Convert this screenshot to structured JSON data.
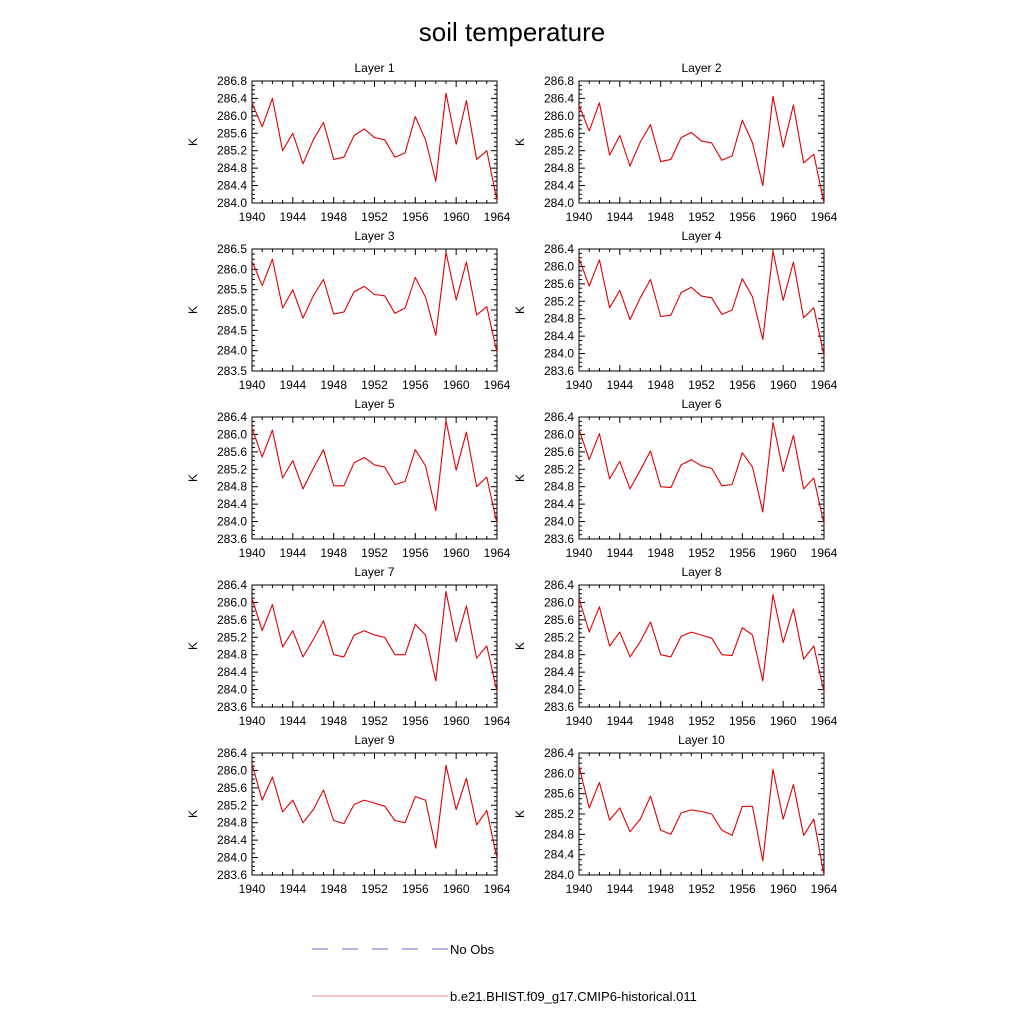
{
  "figure": {
    "title": "soil temperature",
    "legend": [
      {
        "label": "No Obs",
        "color": "#6b6bd6",
        "style": "dashed"
      },
      {
        "label": "b.e21.BHIST.f09_g17.CMIP6-historical.011",
        "color": "#f08a8a",
        "style": "solid"
      }
    ],
    "series_color": "#e00000"
  },
  "chart_data": [
    {
      "type": "line",
      "title": "Layer 1",
      "ylabel": "K",
      "xlim": [
        1940,
        1964
      ],
      "ylim": [
        284.0,
        286.8
      ],
      "xticks": [
        "1940",
        "1944",
        "1948",
        "1952",
        "1956",
        "1960",
        "1964"
      ],
      "yticks": [
        "284.0",
        "284.4",
        "284.8",
        "285.2",
        "285.6",
        "286.0",
        "286.4",
        "286.8"
      ],
      "x": [
        1940,
        1941,
        1942,
        1943,
        1944,
        1945,
        1946,
        1947,
        1948,
        1949,
        1950,
        1951,
        1952,
        1953,
        1954,
        1955,
        1956,
        1957,
        1958,
        1959,
        1960,
        1961,
        1962,
        1963,
        1964
      ],
      "y": [
        286.3,
        285.75,
        286.4,
        285.2,
        285.6,
        284.9,
        285.45,
        285.85,
        285.0,
        285.05,
        285.55,
        285.7,
        285.5,
        285.45,
        285.05,
        285.15,
        285.98,
        285.45,
        284.5,
        286.52,
        285.35,
        286.35,
        285.0,
        285.2,
        284.05
      ]
    },
    {
      "type": "line",
      "title": "Layer 2",
      "ylabel": "K",
      "xlim": [
        1940,
        1964
      ],
      "ylim": [
        284.0,
        286.8
      ],
      "xticks": [
        "1940",
        "1944",
        "1948",
        "1952",
        "1956",
        "1960",
        "1964"
      ],
      "yticks": [
        "284.0",
        "284.4",
        "284.8",
        "285.2",
        "285.6",
        "286.0",
        "286.4",
        "286.8"
      ],
      "x": [
        1940,
        1941,
        1942,
        1943,
        1944,
        1945,
        1946,
        1947,
        1948,
        1949,
        1950,
        1951,
        1952,
        1953,
        1954,
        1955,
        1956,
        1957,
        1958,
        1959,
        1960,
        1961,
        1962,
        1963,
        1964
      ],
      "y": [
        286.25,
        285.65,
        286.3,
        285.1,
        285.55,
        284.85,
        285.4,
        285.8,
        284.95,
        285.0,
        285.5,
        285.62,
        285.42,
        285.38,
        284.98,
        285.08,
        285.9,
        285.38,
        284.4,
        286.45,
        285.28,
        286.25,
        284.92,
        285.12,
        284.0
      ]
    },
    {
      "type": "line",
      "title": "Layer 3",
      "ylabel": "K",
      "xlim": [
        1940,
        1964
      ],
      "ylim": [
        283.5,
        286.5
      ],
      "xticks": [
        "1940",
        "1944",
        "1948",
        "1952",
        "1956",
        "1960",
        "1964"
      ],
      "yticks": [
        "283.5",
        "284.0",
        "284.5",
        "285.0",
        "285.5",
        "286.0",
        "286.5"
      ],
      "x": [
        1940,
        1941,
        1942,
        1943,
        1944,
        1945,
        1946,
        1947,
        1948,
        1949,
        1950,
        1951,
        1952,
        1953,
        1954,
        1955,
        1956,
        1957,
        1958,
        1959,
        1960,
        1961,
        1962,
        1963,
        1964
      ],
      "y": [
        286.2,
        285.6,
        286.25,
        285.05,
        285.5,
        284.8,
        285.35,
        285.75,
        284.9,
        284.95,
        285.45,
        285.58,
        285.38,
        285.35,
        284.92,
        285.05,
        285.8,
        285.32,
        284.38,
        286.42,
        285.25,
        286.18,
        284.88,
        285.08,
        283.95
      ]
    },
    {
      "type": "line",
      "title": "Layer 4",
      "ylabel": "K",
      "xlim": [
        1940,
        1964
      ],
      "ylim": [
        283.6,
        286.4
      ],
      "xticks": [
        "1940",
        "1944",
        "1948",
        "1952",
        "1956",
        "1960",
        "1964"
      ],
      "yticks": [
        "283.6",
        "284.0",
        "284.4",
        "284.8",
        "285.2",
        "285.6",
        "286.0",
        "286.4"
      ],
      "x": [
        1940,
        1941,
        1942,
        1943,
        1944,
        1945,
        1946,
        1947,
        1948,
        1949,
        1950,
        1951,
        1952,
        1953,
        1954,
        1955,
        1956,
        1957,
        1958,
        1959,
        1960,
        1961,
        1962,
        1963,
        1964
      ],
      "y": [
        286.18,
        285.55,
        286.15,
        285.05,
        285.45,
        284.78,
        285.28,
        285.7,
        284.85,
        284.88,
        285.4,
        285.52,
        285.32,
        285.28,
        284.9,
        285.0,
        285.72,
        285.3,
        284.32,
        286.35,
        285.22,
        286.1,
        284.82,
        285.05,
        283.95
      ]
    },
    {
      "type": "line",
      "title": "Layer 5",
      "ylabel": "K",
      "xlim": [
        1940,
        1964
      ],
      "ylim": [
        283.6,
        286.4
      ],
      "xticks": [
        "1940",
        "1944",
        "1948",
        "1952",
        "1956",
        "1960",
        "1964"
      ],
      "yticks": [
        "283.6",
        "284.0",
        "284.4",
        "284.8",
        "285.2",
        "285.6",
        "286.0",
        "286.4"
      ],
      "x": [
        1940,
        1941,
        1942,
        1943,
        1944,
        1945,
        1946,
        1947,
        1948,
        1949,
        1950,
        1951,
        1952,
        1953,
        1954,
        1955,
        1956,
        1957,
        1958,
        1959,
        1960,
        1961,
        1962,
        1963,
        1964
      ],
      "y": [
        286.15,
        285.48,
        286.1,
        285.0,
        285.4,
        284.75,
        285.22,
        285.65,
        284.82,
        284.82,
        285.35,
        285.47,
        285.3,
        285.25,
        284.85,
        284.92,
        285.65,
        285.28,
        284.25,
        286.32,
        285.18,
        286.05,
        284.8,
        285.02,
        283.95
      ]
    },
    {
      "type": "line",
      "title": "Layer 6",
      "ylabel": "K",
      "xlim": [
        1940,
        1964
      ],
      "ylim": [
        283.6,
        286.4
      ],
      "xticks": [
        "1940",
        "1944",
        "1948",
        "1952",
        "1956",
        "1960",
        "1964"
      ],
      "yticks": [
        "283.6",
        "284.0",
        "284.4",
        "284.8",
        "285.2",
        "285.6",
        "286.0",
        "286.4"
      ],
      "x": [
        1940,
        1941,
        1942,
        1943,
        1944,
        1945,
        1946,
        1947,
        1948,
        1949,
        1950,
        1951,
        1952,
        1953,
        1954,
        1955,
        1956,
        1957,
        1958,
        1959,
        1960,
        1961,
        1962,
        1963,
        1964
      ],
      "y": [
        286.12,
        285.42,
        286.02,
        284.98,
        285.38,
        284.75,
        285.18,
        285.62,
        284.8,
        284.78,
        285.3,
        285.42,
        285.28,
        285.22,
        284.82,
        284.85,
        285.58,
        285.25,
        284.22,
        286.28,
        285.15,
        285.98,
        284.75,
        285.0,
        283.95
      ]
    },
    {
      "type": "line",
      "title": "Layer 7",
      "ylabel": "K",
      "xlim": [
        1940,
        1964
      ],
      "ylim": [
        283.6,
        286.4
      ],
      "xticks": [
        "1940",
        "1944",
        "1948",
        "1952",
        "1956",
        "1960",
        "1964"
      ],
      "yticks": [
        "283.6",
        "284.0",
        "284.4",
        "284.8",
        "285.2",
        "285.6",
        "286.0",
        "286.4"
      ],
      "x": [
        1940,
        1941,
        1942,
        1943,
        1944,
        1945,
        1946,
        1947,
        1948,
        1949,
        1950,
        1951,
        1952,
        1953,
        1954,
        1955,
        1956,
        1957,
        1958,
        1959,
        1960,
        1961,
        1962,
        1963,
        1964
      ],
      "y": [
        286.1,
        285.35,
        285.95,
        284.98,
        285.35,
        284.75,
        285.15,
        285.58,
        284.8,
        284.75,
        285.25,
        285.35,
        285.25,
        285.2,
        284.8,
        284.8,
        285.5,
        285.25,
        284.2,
        286.25,
        285.1,
        285.92,
        284.72,
        285.0,
        283.95
      ]
    },
    {
      "type": "line",
      "title": "Layer 8",
      "ylabel": "K",
      "xlim": [
        1940,
        1964
      ],
      "ylim": [
        283.6,
        286.4
      ],
      "xticks": [
        "1940",
        "1944",
        "1948",
        "1952",
        "1956",
        "1960",
        "1964"
      ],
      "yticks": [
        "283.6",
        "284.0",
        "284.4",
        "284.8",
        "285.2",
        "285.6",
        "286.0",
        "286.4"
      ],
      "x": [
        1940,
        1941,
        1942,
        1943,
        1944,
        1945,
        1946,
        1947,
        1948,
        1949,
        1950,
        1951,
        1952,
        1953,
        1954,
        1955,
        1956,
        1957,
        1958,
        1959,
        1960,
        1961,
        1962,
        1963,
        1964
      ],
      "y": [
        286.1,
        285.32,
        285.9,
        285.0,
        285.32,
        284.75,
        285.1,
        285.55,
        284.8,
        284.75,
        285.22,
        285.32,
        285.25,
        285.18,
        284.8,
        284.78,
        285.42,
        285.25,
        284.2,
        286.18,
        285.08,
        285.85,
        284.7,
        285.0,
        283.95
      ]
    },
    {
      "type": "line",
      "title": "Layer 9",
      "ylabel": "K",
      "xlim": [
        1940,
        1964
      ],
      "ylim": [
        283.6,
        286.4
      ],
      "xticks": [
        "1940",
        "1944",
        "1948",
        "1952",
        "1956",
        "1960",
        "1964"
      ],
      "yticks": [
        "283.6",
        "284.0",
        "284.4",
        "284.8",
        "285.2",
        "285.6",
        "286.0",
        "286.4"
      ],
      "x": [
        1940,
        1941,
        1942,
        1943,
        1944,
        1945,
        1946,
        1947,
        1948,
        1949,
        1950,
        1951,
        1952,
        1953,
        1954,
        1955,
        1956,
        1957,
        1958,
        1959,
        1960,
        1961,
        1962,
        1963,
        1964
      ],
      "y": [
        286.15,
        285.32,
        285.85,
        285.05,
        285.32,
        284.8,
        285.1,
        285.55,
        284.85,
        284.78,
        285.22,
        285.32,
        285.25,
        285.18,
        284.85,
        284.8,
        285.4,
        285.32,
        284.22,
        286.12,
        285.1,
        285.82,
        284.75,
        285.08,
        283.98
      ]
    },
    {
      "type": "line",
      "title": "Layer 10",
      "ylabel": "K",
      "xlim": [
        1940,
        1964
      ],
      "ylim": [
        284.0,
        286.4
      ],
      "xticks": [
        "1940",
        "1944",
        "1948",
        "1952",
        "1956",
        "1960",
        "1964"
      ],
      "yticks": [
        "284.0",
        "284.4",
        "284.8",
        "285.2",
        "285.6",
        "286.0",
        "286.4"
      ],
      "x": [
        1940,
        1941,
        1942,
        1943,
        1944,
        1945,
        1946,
        1947,
        1948,
        1949,
        1950,
        1951,
        1952,
        1953,
        1954,
        1955,
        1956,
        1957,
        1958,
        1959,
        1960,
        1961,
        1962,
        1963,
        1964
      ],
      "y": [
        286.15,
        285.32,
        285.82,
        285.08,
        285.32,
        284.85,
        285.1,
        285.55,
        284.88,
        284.8,
        285.22,
        285.28,
        285.25,
        285.2,
        284.88,
        284.78,
        285.35,
        285.35,
        284.28,
        286.08,
        285.1,
        285.78,
        284.78,
        285.1,
        284.0
      ]
    }
  ]
}
